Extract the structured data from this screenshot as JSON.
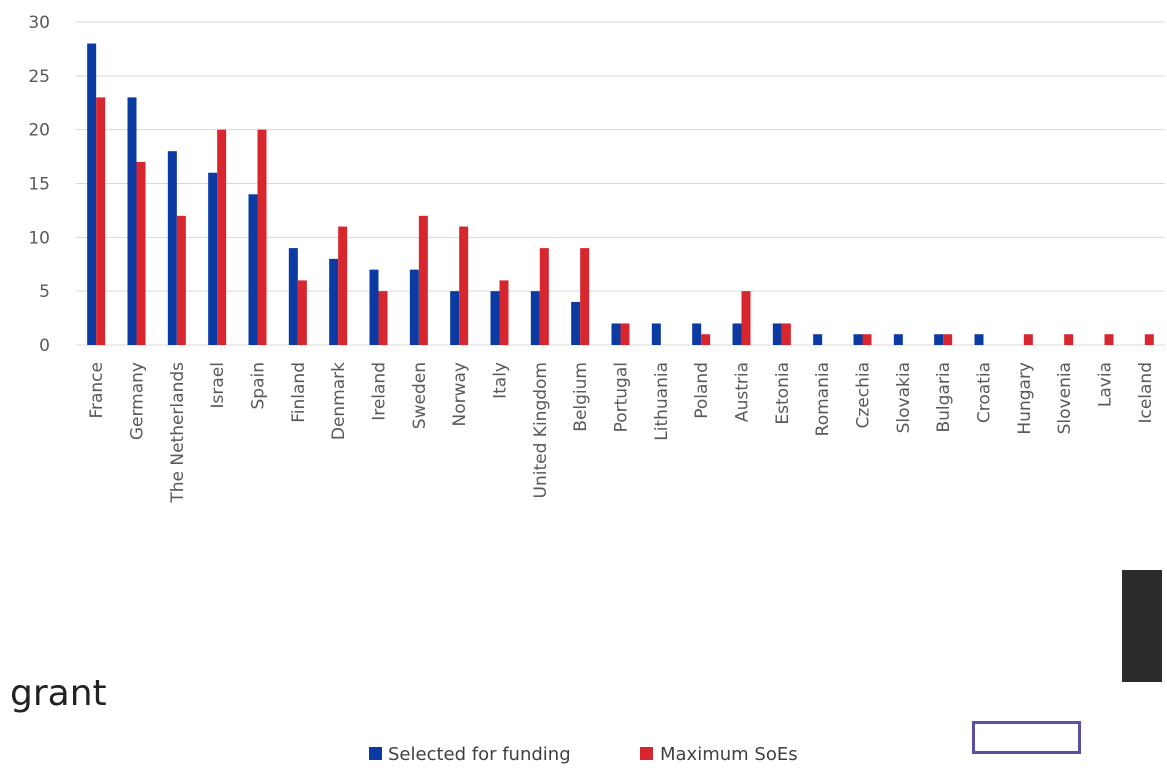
{
  "chart_data": {
    "type": "bar",
    "categories": [
      "France",
      "Germany",
      "The Netherlands",
      "Israel",
      "Spain",
      "Finland",
      "Denmark",
      "Ireland",
      "Sweden",
      "Norway",
      "Italy",
      "United Kingdom",
      "Belgium",
      "Portugal",
      "Lithuania",
      "Poland",
      "Austria",
      "Estonia",
      "Romania",
      "Czechia",
      "Slovakia",
      "Bulgaria",
      "Croatia",
      "Hungary",
      "Slovenia",
      "Lavia",
      "Iceland"
    ],
    "series": [
      {
        "name": "Selected for funding",
        "color": "#0b3aa3",
        "values": [
          28,
          23,
          18,
          16,
          14,
          9,
          8,
          7,
          7,
          5,
          5,
          5,
          4,
          2,
          2,
          2,
          2,
          2,
          1,
          1,
          1,
          1,
          1,
          0,
          0,
          0,
          0
        ]
      },
      {
        "name": "Maximum SoEs",
        "color": "#d7262e",
        "values": [
          23,
          17,
          12,
          20,
          20,
          6,
          11,
          5,
          12,
          11,
          6,
          9,
          9,
          2,
          0,
          1,
          5,
          2,
          0,
          1,
          0,
          1,
          0,
          1,
          1,
          1,
          1
        ]
      }
    ],
    "yticks": [
      "0",
      "5",
      "10",
      "15",
      "20",
      "25",
      "30"
    ],
    "ylim": [
      0,
      30
    ],
    "grid": true,
    "legend_position": "bottom-center"
  },
  "page": {
    "caption_text": "grant"
  }
}
